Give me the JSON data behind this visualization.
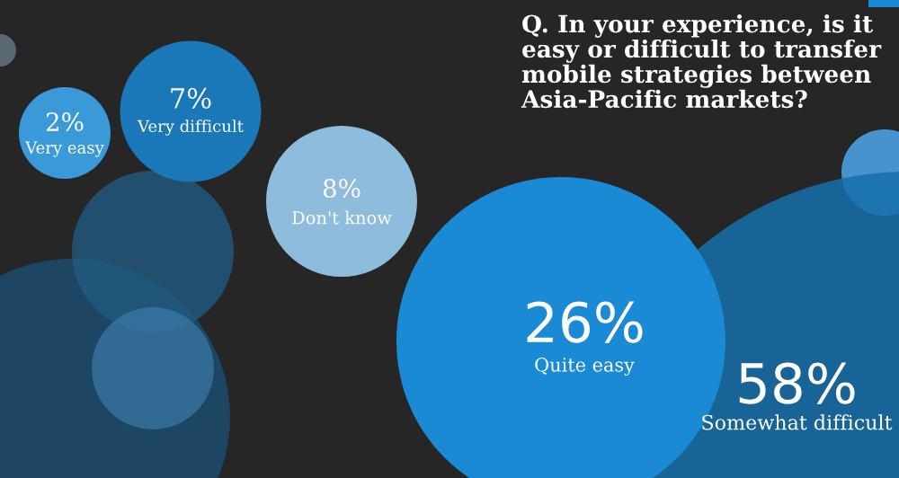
{
  "chart_data": {
    "type": "other",
    "title": "Q. In your experience, is it easy or difficult to transfer mobile strategies between Asia-Pacific markets?",
    "categories": [
      "Very easy",
      "Very difficult",
      "Don't know",
      "Quite easy",
      "Somewhat difficult"
    ],
    "values": [
      2,
      7,
      8,
      26,
      58
    ],
    "value_labels": [
      "2%",
      "7%",
      "8%",
      "26%",
      "58%"
    ],
    "colors": [
      "#3a9ad9",
      "#1a78b8",
      "#8dbcdc",
      "#1a8ad4",
      "#1670aa"
    ]
  }
}
